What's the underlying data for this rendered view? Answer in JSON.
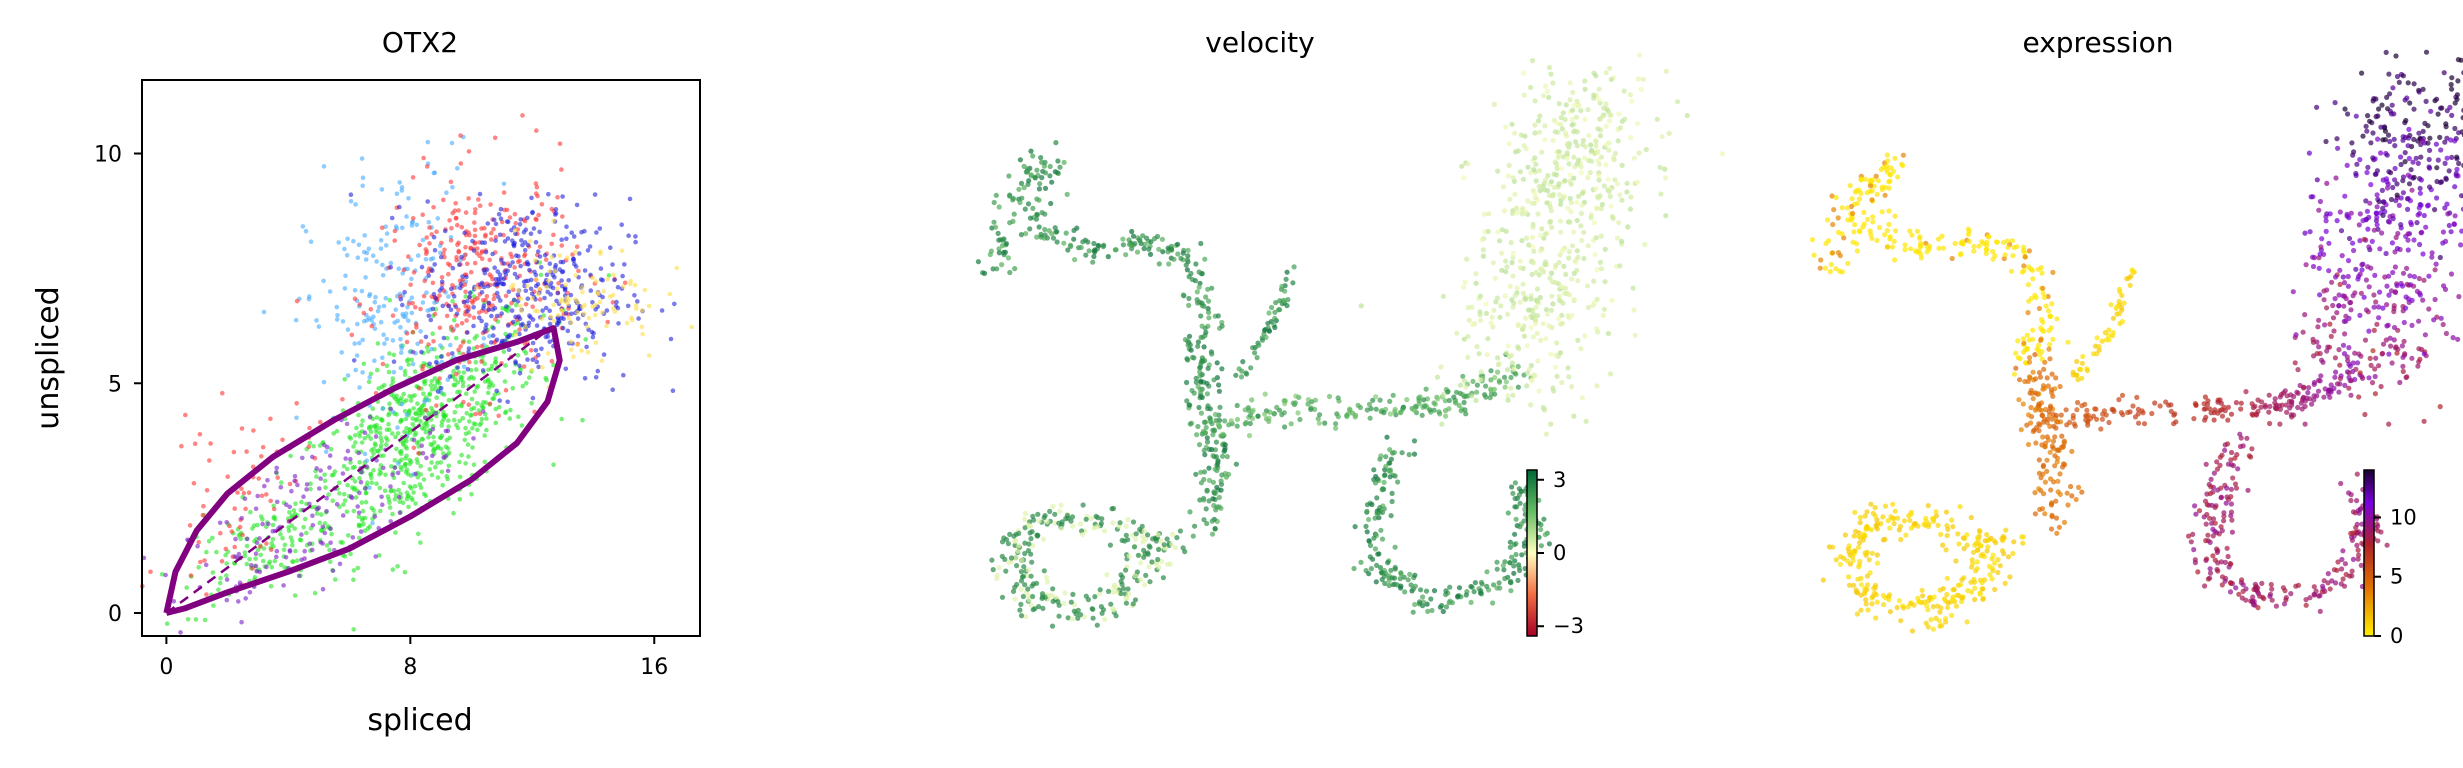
{
  "figure": {
    "panels": [
      {
        "title": "OTX2"
      },
      {
        "title": "velocity"
      },
      {
        "title": "expression"
      }
    ]
  },
  "chart_data": [
    {
      "type": "scatter",
      "title": "OTX2",
      "xlabel": "spliced",
      "ylabel": "unspliced",
      "xlim": [
        -0.8,
        17.5
      ],
      "ylim": [
        -0.5,
        11.6
      ],
      "xticks": [
        0,
        8,
        16
      ],
      "yticks": [
        0,
        5,
        10
      ],
      "grid": false,
      "legend": "none",
      "colors": {
        "green": "#22e622",
        "red": "#ff3333",
        "blue": "#2222dd",
        "light_blue": "#44aaff",
        "yellow": "#ffdd44",
        "purple": "#7a1cc7",
        "curve": "#800080"
      },
      "clusters": [
        {
          "color": "green",
          "n": 700,
          "center": [
            8.2,
            3.9
          ],
          "spread": [
            2.0,
            1.0
          ],
          "slope": 0.42
        },
        {
          "color": "green",
          "n": 120,
          "center": [
            3.0,
            1.4
          ],
          "spread": [
            1.2,
            0.5
          ],
          "slope": 0.35
        },
        {
          "color": "light_blue",
          "n": 210,
          "center": [
            7.4,
            6.8
          ],
          "spread": [
            1.4,
            1.5
          ],
          "slope": 0.2
        },
        {
          "color": "red",
          "n": 330,
          "center": [
            10.3,
            7.2
          ],
          "spread": [
            1.6,
            1.2
          ],
          "slope": 0.1
        },
        {
          "color": "red",
          "n": 70,
          "center": [
            2.4,
            2.6
          ],
          "spread": [
            1.2,
            0.9
          ],
          "slope": 0.3
        },
        {
          "color": "blue",
          "n": 400,
          "center": [
            11.8,
            7.0
          ],
          "spread": [
            1.7,
            1.0
          ],
          "slope": 0.0
        },
        {
          "color": "yellow",
          "n": 110,
          "center": [
            13.4,
            6.8
          ],
          "spread": [
            1.4,
            0.7
          ],
          "slope": 0.0
        },
        {
          "color": "purple",
          "n": 170,
          "center": [
            4.6,
            2.1
          ],
          "spread": [
            2.2,
            0.8
          ],
          "slope": 0.4
        }
      ],
      "lines": [
        {
          "name": "",
          "style": "dashed",
          "points": [
            [
              0,
              0
            ],
            [
              12.6,
              6.2
            ]
          ]
        }
      ],
      "curve": {
        "upper": [
          [
            0.0,
            0.0
          ],
          [
            0.3,
            0.9
          ],
          [
            1.0,
            1.8
          ],
          [
            2.0,
            2.6
          ],
          [
            3.5,
            3.4
          ],
          [
            5.5,
            4.2
          ],
          [
            7.5,
            4.9
          ],
          [
            9.5,
            5.5
          ],
          [
            11.5,
            5.9
          ],
          [
            12.7,
            6.2
          ]
        ],
        "lower": [
          [
            12.7,
            6.2
          ],
          [
            12.9,
            5.5
          ],
          [
            12.5,
            4.6
          ],
          [
            11.5,
            3.7
          ],
          [
            10.0,
            2.9
          ],
          [
            8.0,
            2.1
          ],
          [
            6.0,
            1.4
          ],
          [
            4.0,
            0.9
          ],
          [
            2.0,
            0.45
          ],
          [
            0.6,
            0.1
          ],
          [
            0.0,
            0.0
          ]
        ]
      }
    },
    {
      "type": "scatter",
      "title": "velocity",
      "colorbar": {
        "ticks": [
          "3",
          "0",
          "−3"
        ],
        "values": [
          3,
          0,
          -3
        ],
        "range": [
          -3.4,
          3.4
        ],
        "colormap": "RdYlGn"
      }
    },
    {
      "type": "scatter",
      "title": "expression",
      "colorbar": {
        "ticks": [
          "10",
          "5",
          "0"
        ],
        "values": [
          10,
          5,
          0
        ],
        "range": [
          0,
          14
        ],
        "colormap": "gnuplot"
      }
    }
  ]
}
